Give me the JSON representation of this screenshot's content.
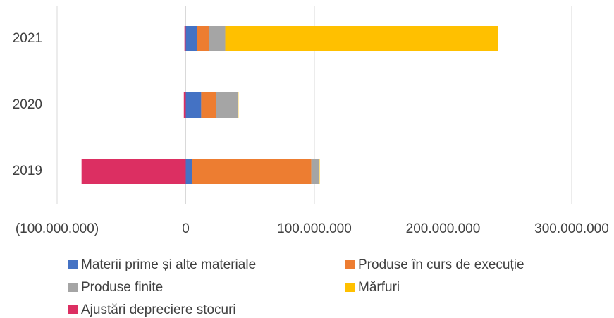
{
  "chart_data": {
    "type": "stacked_barh",
    "categories": [
      "2019",
      "2020",
      "2021"
    ],
    "series": [
      {
        "name": "Materii prime și alte materiale",
        "color": "#4472c4",
        "values": [
          5000000,
          12000000,
          8800000
        ]
      },
      {
        "name": "Produse în curs de execuție",
        "color": "#ed7d31",
        "values": [
          92600000,
          11500000,
          9300000
        ]
      },
      {
        "name": "Produse finite",
        "color": "#a5a5a5",
        "values": [
          6000000,
          17000000,
          12600000
        ]
      },
      {
        "name": "Mărfuri",
        "color": "#ffc000",
        "values": [
          500000,
          500000,
          212000000
        ]
      },
      {
        "name": "Ajustări depreciere stocuri",
        "color": "#dc2f62",
        "values": [
          -81000000,
          -1500000,
          -1000000
        ]
      }
    ],
    "xlim": [
      -100000000,
      300000000
    ],
    "xticks": [
      {
        "value": -100000000,
        "label": "(100.000.000)"
      },
      0,
      {
        "value": 100000000,
        "label": "100.000.000"
      },
      {
        "value": 200000000,
        "label": "200.000.000"
      },
      {
        "value": 300000000,
        "label": "300.000.000"
      }
    ],
    "grid": true,
    "legend": "bottom"
  }
}
